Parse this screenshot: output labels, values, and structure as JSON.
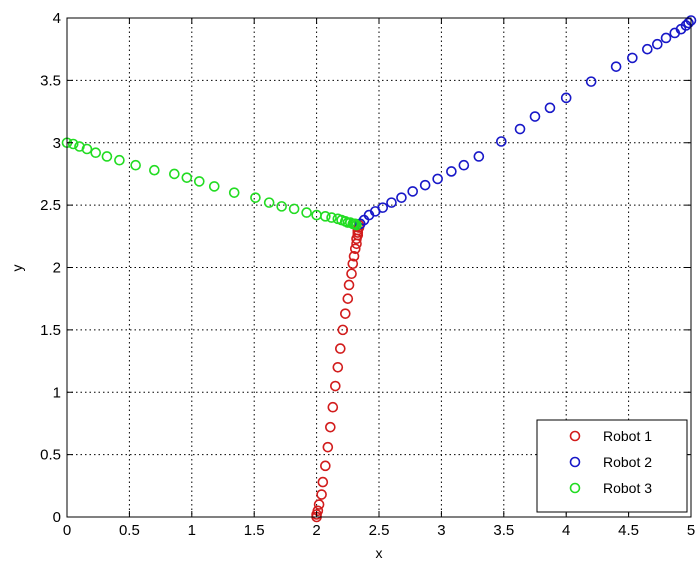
{
  "chart_data": {
    "type": "scatter",
    "xlabel": "x",
    "ylabel": "y",
    "xlim": [
      0,
      5
    ],
    "ylim": [
      0,
      4
    ],
    "xticks": [
      "0",
      "0.5",
      "1",
      "1.5",
      "2",
      "2.5",
      "3",
      "3.5",
      "4",
      "4.5",
      "5"
    ],
    "yticks": [
      "0",
      "0.5",
      "1",
      "1.5",
      "2",
      "2.5",
      "3",
      "3.5",
      "4"
    ],
    "grid": true,
    "legend_position": "bottom-right",
    "marker": "open-circle",
    "series": [
      {
        "name": "Robot 1",
        "color": "#d21c1c",
        "x": [
          2.0,
          2.0,
          2.01,
          2.02,
          2.04,
          2.05,
          2.07,
          2.09,
          2.11,
          2.13,
          2.15,
          2.17,
          2.19,
          2.21,
          2.23,
          2.25,
          2.26,
          2.28,
          2.29,
          2.3,
          2.31,
          2.32,
          2.32,
          2.33,
          2.33,
          2.33,
          2.34,
          2.34
        ],
        "y": [
          0.0,
          0.02,
          0.05,
          0.1,
          0.18,
          0.28,
          0.41,
          0.56,
          0.72,
          0.88,
          1.05,
          1.2,
          1.35,
          1.5,
          1.63,
          1.75,
          1.86,
          1.95,
          2.03,
          2.09,
          2.15,
          2.19,
          2.23,
          2.26,
          2.28,
          2.3,
          2.32,
          2.34
        ]
      },
      {
        "name": "Robot 2",
        "color": "#1818c8",
        "x": [
          2.35,
          2.38,
          2.42,
          2.47,
          2.53,
          2.6,
          2.68,
          2.77,
          2.87,
          2.97,
          3.08,
          3.18,
          3.3,
          3.48,
          3.63,
          3.75,
          3.87,
          4.0,
          4.2,
          4.4,
          4.53,
          4.65,
          4.73,
          4.8,
          4.87,
          4.92,
          4.96,
          4.98,
          5.0
        ],
        "y": [
          2.35,
          2.38,
          2.42,
          2.45,
          2.48,
          2.52,
          2.56,
          2.61,
          2.66,
          2.71,
          2.77,
          2.82,
          2.89,
          3.01,
          3.11,
          3.21,
          3.28,
          3.36,
          3.49,
          3.61,
          3.68,
          3.75,
          3.79,
          3.84,
          3.88,
          3.91,
          3.94,
          3.96,
          3.98
        ]
      },
      {
        "name": "Robot 3",
        "color": "#22dc22",
        "x": [
          0.0,
          0.05,
          0.1,
          0.16,
          0.23,
          0.32,
          0.42,
          0.55,
          0.7,
          0.86,
          0.96,
          1.06,
          1.18,
          1.34,
          1.51,
          1.62,
          1.72,
          1.82,
          1.92,
          2.0,
          2.07,
          2.12,
          2.17,
          2.2,
          2.23,
          2.25,
          2.27,
          2.29,
          2.3,
          2.31,
          2.32
        ],
        "y": [
          3.0,
          2.99,
          2.97,
          2.95,
          2.92,
          2.89,
          2.86,
          2.82,
          2.78,
          2.75,
          2.72,
          2.69,
          2.65,
          2.6,
          2.56,
          2.52,
          2.49,
          2.47,
          2.44,
          2.42,
          2.41,
          2.4,
          2.39,
          2.38,
          2.37,
          2.36,
          2.36,
          2.35,
          2.35,
          2.35,
          2.34
        ]
      }
    ]
  }
}
